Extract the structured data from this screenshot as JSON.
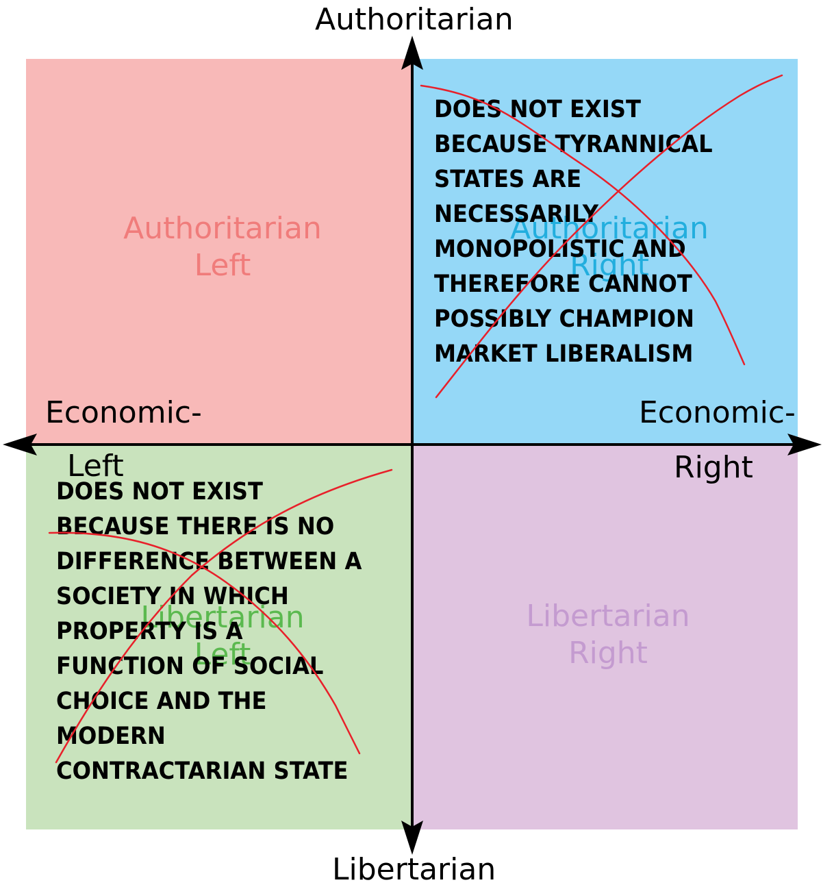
{
  "quadrants": {
    "auth_left": {
      "line1": "Authoritarian",
      "line2": "Left",
      "color": "#f8b9b8",
      "text_color": "#f07c7b"
    },
    "auth_right": {
      "line1": "Authoritarian",
      "line2": "Right",
      "color": "#95d8f7",
      "text_color": "#22aede"
    },
    "lib_left": {
      "line1": "Libertarian",
      "line2": "Left",
      "color": "#c9e3bd",
      "text_color": "#5bb94f"
    },
    "lib_right": {
      "line1": "Libertarian",
      "line2": "Right",
      "color": "#e0c4e0",
      "text_color": "#c49bd0"
    }
  },
  "axes": {
    "top": "Authoritarian",
    "bottom": "Libertarian",
    "left_line1": "Economic-",
    "left_line2": "Left",
    "right_line1": "Economic-",
    "right_line2": "Right"
  },
  "annotations": {
    "auth_right_note": [
      "DOES NOT EXIST",
      "BECAUSE TYRANNICAL",
      "STATES ARE",
      "NECESSARILY",
      "MONOPOLISTIC AND",
      "THEREFORE CANNOT",
      "POSSIBLY CHAMPION",
      "MARKET LIBERALISM"
    ],
    "lib_left_note": [
      "DOES NOT EXIST",
      "BECAUSE THERE IS NO",
      "DIFFERENCE BETWEEN A",
      "SOCIETY IN WHICH",
      "PROPERTY IS A",
      "FUNCTION OF SOCIAL",
      "CHOICE AND THE",
      "MODERN",
      "CONTRACTARIAN STATE"
    ]
  },
  "colors": {
    "axis": "#000000",
    "cross_out": "#e8202a"
  }
}
